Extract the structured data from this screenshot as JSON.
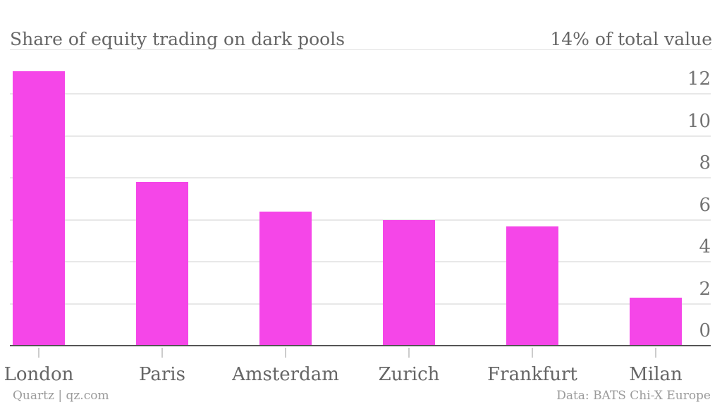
{
  "header": {
    "title": "Share of equity trading on dark pools",
    "note": "14% of total value"
  },
  "footer": {
    "left": "Quartz | qz.com",
    "right": "Data: BATS Chi-X Europe"
  },
  "colors": {
    "bar": "#F546E8",
    "title_text": "#666666",
    "axis_text": "#737373",
    "footer_text": "#9B9B9B",
    "gridline": "#E8E8E8",
    "baseline": "#555555",
    "tick": "#CCCCCC",
    "header_rule": "#E6E6E6"
  },
  "chart_data": {
    "type": "bar",
    "title": "Share of equity trading on dark pools",
    "subtitle_right": "14% of total value",
    "categories": [
      "London",
      "Paris",
      "Amsterdam",
      "Zurich",
      "Frankfurt",
      "Milan"
    ],
    "values": [
      13.1,
      7.8,
      6.4,
      6.0,
      5.7,
      2.3
    ],
    "unit": "% of total equity trading value",
    "xlabel": "",
    "ylabel": "",
    "ylim": [
      0,
      13.2
    ],
    "yticks": [
      0,
      2,
      4,
      6,
      8,
      10,
      12
    ],
    "grid": true,
    "legend": false,
    "bar_color": "#F546E8",
    "source": "Data: BATS Chi-X Europe"
  }
}
